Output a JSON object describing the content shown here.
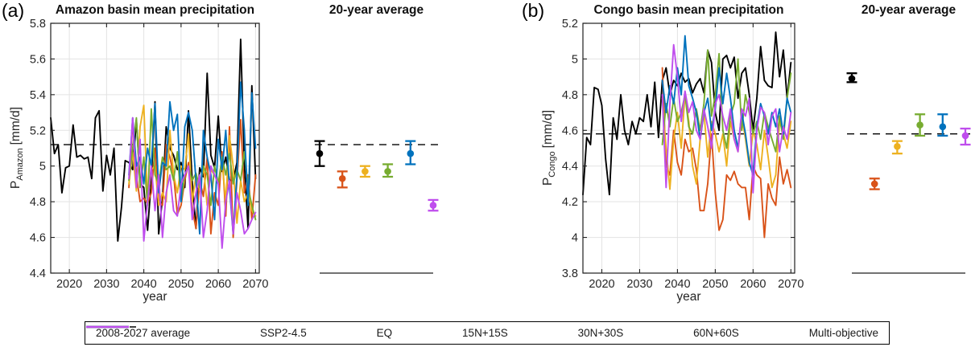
{
  "colors": {
    "black": "#000000",
    "orange": "#D95319",
    "yellow": "#EDB120",
    "green": "#77AC30",
    "blue": "#0072BD",
    "magenta": "#BF4DED",
    "grid": "#e3e3e3",
    "axis": "#1f1f1f"
  },
  "panels": [
    {
      "label": "(a)",
      "title": "Amazon basin mean precipitation",
      "avg_title": "20-year average",
      "xlabel": "year",
      "ylabel": {
        "prefix": "P",
        "sub": "Amazon",
        "unit": "[mm/d]"
      }
    },
    {
      "label": "(b)",
      "title": "Congo basin mean precipitation",
      "avg_title": "20-year average",
      "xlabel": "year",
      "ylabel": {
        "prefix": "P",
        "sub": "Congo",
        "unit": "[mm/d]"
      }
    }
  ],
  "legend": {
    "items": [
      {
        "label": "2008-2027 average",
        "color": "#000000",
        "style": "dashed"
      },
      {
        "label": "SSP2-4.5",
        "color": "#000000",
        "style": "solid"
      },
      {
        "label": "EQ",
        "color": "#D95319",
        "style": "solid"
      },
      {
        "label": "15N+15S",
        "color": "#EDB120",
        "style": "solid"
      },
      {
        "label": "30N+30S",
        "color": "#77AC30",
        "style": "solid"
      },
      {
        "label": "60N+60S",
        "color": "#0072BD",
        "style": "solid"
      },
      {
        "label": "Multi-objective",
        "color": "#BF4DED",
        "style": "solid"
      }
    ]
  },
  "chart_data": [
    {
      "type": "line",
      "title": "Amazon basin mean precipitation",
      "xlabel": "year",
      "ylabel": "P_Amazon [mm/d]",
      "xlim": [
        2015,
        2071
      ],
      "ylim": [
        4.4,
        5.8
      ],
      "xticks": [
        2020,
        2030,
        2040,
        2050,
        2060,
        2070
      ],
      "yticks": [
        4.4,
        4.6,
        4.8,
        5,
        5.2,
        5.4,
        5.6,
        5.8
      ],
      "grid": true,
      "legend_position": "bottom",
      "dashed_line": {
        "label": "2008-2027 average",
        "value": 5.12
      },
      "series": [
        {
          "name": "SSP2-4.5",
          "color": "#000000",
          "x_start": 2015,
          "values": [
            5.27,
            5.07,
            5.12,
            4.85,
            4.99,
            5.0,
            5.23,
            5.05,
            5.06,
            5.04,
            5.05,
            4.93,
            5.27,
            5.31,
            4.86,
            5.06,
            4.95,
            5.1,
            4.58,
            4.77,
            5.03,
            5.02,
            4.98,
            5.26,
            4.9,
            4.88,
            4.64,
            4.92,
            5.36,
            4.62,
            4.82,
            5.22,
            5.1,
            5.06,
            4.98,
            5.02,
            4.88,
            5.31,
            4.91,
            4.65,
            4.99,
            4.94,
            5.52,
            5.06,
            4.99,
            5.28,
            4.97,
            5.05,
            4.92,
            4.92,
            5.02,
            5.71,
            5.01,
            4.65,
            5.45,
            4.93
          ]
        },
        {
          "name": "EQ",
          "color": "#D95319",
          "x_start": 2036,
          "values": [
            4.88,
            5.25,
            4.95,
            4.8,
            4.82,
            4.79,
            4.85,
            5.1,
            4.8,
            4.78,
            5.12,
            5.05,
            4.95,
            4.73,
            4.78,
            4.92,
            5.02,
            4.76,
            4.65,
            4.92,
            4.83,
            5.05,
            4.62,
            4.85,
            4.78,
            5.08,
            4.72,
            5.22,
            4.6,
            4.92,
            5.26,
            4.85,
            4.95,
            4.7,
            4.95
          ]
        },
        {
          "name": "15N+15S",
          "color": "#EDB120",
          "x_start": 2036,
          "values": [
            4.9,
            5.08,
            4.86,
            5.22,
            5.34,
            4.8,
            4.98,
            5.0,
            4.78,
            4.85,
            4.8,
            5.2,
            4.95,
            4.85,
            5.0,
            4.98,
            5.18,
            4.8,
            4.95,
            4.86,
            5.0,
            4.78,
            4.98,
            4.95,
            4.9,
            5.02,
            4.8,
            5.17,
            5.0,
            4.68,
            4.92,
            4.8,
            4.85,
            4.75,
            4.72
          ]
        },
        {
          "name": "30N+30S",
          "color": "#77AC30",
          "x_start": 2036,
          "values": [
            4.92,
            5.1,
            5.27,
            4.88,
            5.05,
            4.78,
            5.32,
            4.95,
            4.9,
            5.05,
            4.98,
            5.0,
            4.92,
            5.08,
            4.8,
            4.95,
            5.0,
            4.92,
            4.96,
            4.88,
            5.0,
            4.95,
            4.78,
            5.0,
            4.9,
            5.05,
            4.95,
            5.07,
            4.9,
            4.98,
            4.92,
            5.08,
            4.88,
            4.78,
            4.7
          ]
        },
        {
          "name": "60N+60S",
          "color": "#0072BD",
          "x_start": 2036,
          "values": [
            4.95,
            5.27,
            5.0,
            5.05,
            4.9,
            5.1,
            5.0,
            5.35,
            4.85,
            5.02,
            5.0,
            5.36,
            5.2,
            5.29,
            4.8,
            5.22,
            5.3,
            5.2,
            4.92,
            4.62,
            5.2,
            5.05,
            4.95,
            4.7,
            5.15,
            4.98,
            5.2,
            4.88,
            4.62,
            4.95,
            5.47,
            5.2,
            4.78,
            5.41,
            5.1
          ]
        },
        {
          "name": "Multi-objective",
          "color": "#BF4DED",
          "x_start": 2036,
          "values": [
            4.93,
            5.27,
            4.88,
            5.15,
            4.58,
            4.8,
            5.0,
            4.75,
            4.95,
            4.6,
            4.85,
            4.95,
            4.75,
            4.72,
            4.9,
            4.95,
            5.0,
            4.7,
            4.85,
            4.95,
            4.6,
            4.75,
            5.0,
            4.95,
            4.9,
            4.54,
            4.8,
            4.92,
            4.62,
            4.85,
            4.75,
            4.62,
            4.65,
            4.7,
            4.74
          ]
        }
      ],
      "errorbar": {
        "title": "20-year average",
        "points": [
          {
            "name": "SSP2-4.5",
            "color": "#000000",
            "y": 5.07,
            "lo": 5.0,
            "hi": 5.14
          },
          {
            "name": "EQ",
            "color": "#D95319",
            "y": 4.93,
            "lo": 4.88,
            "hi": 4.97
          },
          {
            "name": "15N+15S",
            "color": "#EDB120",
            "y": 4.97,
            "lo": 4.94,
            "hi": 5.0
          },
          {
            "name": "30N+30S",
            "color": "#77AC30",
            "y": 4.97,
            "lo": 4.94,
            "hi": 5.01
          },
          {
            "name": "60N+60S",
            "color": "#0072BD",
            "y": 5.07,
            "lo": 5.01,
            "hi": 5.14
          },
          {
            "name": "Multi-objective",
            "color": "#BF4DED",
            "y": 4.78,
            "lo": 4.75,
            "hi": 4.81
          }
        ]
      }
    },
    {
      "type": "line",
      "title": "Congo basin mean precipitation",
      "xlabel": "year",
      "ylabel": "P_Congo [mm/d]",
      "xlim": [
        2015,
        2071
      ],
      "ylim": [
        3.8,
        5.2
      ],
      "xticks": [
        2020,
        2030,
        2040,
        2050,
        2060,
        2070
      ],
      "yticks": [
        3.8,
        4,
        4.2,
        4.4,
        4.6,
        4.8,
        5,
        5.2
      ],
      "grid": true,
      "legend_position": "bottom",
      "dashed_line": {
        "label": "2008-2027 average",
        "value": 4.58
      },
      "series": [
        {
          "name": "SSP2-4.5",
          "color": "#000000",
          "x_start": 2015,
          "values": [
            4.24,
            4.56,
            4.52,
            4.84,
            4.83,
            4.74,
            4.44,
            4.24,
            4.67,
            4.55,
            4.8,
            4.6,
            4.52,
            4.65,
            4.58,
            4.67,
            4.65,
            4.8,
            4.62,
            4.87,
            4.56,
            4.88,
            4.95,
            4.8,
            4.88,
            4.85,
            4.92,
            4.87,
            4.89,
            4.81,
            4.86,
            4.89,
            4.81,
            5.05,
            4.98,
            4.7,
            4.6,
            5.0,
            5.02,
            4.95,
            5.01,
            4.78,
            4.92,
            4.95,
            4.8,
            4.6,
            4.78,
            5.07,
            4.88,
            4.85,
            4.84,
            5.15,
            4.9,
            5.05,
            4.78,
            4.98
          ]
        },
        {
          "name": "EQ",
          "color": "#D95319",
          "x_start": 2036,
          "values": [
            4.95,
            4.4,
            4.35,
            4.6,
            4.42,
            4.35,
            4.55,
            4.48,
            4.5,
            4.38,
            4.15,
            4.15,
            4.3,
            4.58,
            4.25,
            4.04,
            4.1,
            4.35,
            4.32,
            4.37,
            4.3,
            4.28,
            4.28,
            4.1,
            4.4,
            4.35,
            4.33,
            4.0,
            4.3,
            4.22,
            4.18,
            4.45,
            4.3,
            4.38,
            4.28
          ]
        },
        {
          "name": "15N+15S",
          "color": "#EDB120",
          "x_start": 2036,
          "values": [
            4.78,
            4.5,
            4.27,
            4.55,
            4.7,
            4.5,
            4.8,
            4.65,
            4.4,
            4.3,
            4.55,
            4.7,
            4.45,
            4.65,
            4.58,
            4.48,
            4.58,
            4.4,
            4.65,
            4.55,
            4.48,
            4.68,
            4.55,
            4.4,
            4.6,
            4.52,
            4.38,
            4.6,
            4.45,
            4.28,
            4.35,
            4.65,
            4.58,
            4.5,
            4.65
          ]
        },
        {
          "name": "30N+30S",
          "color": "#77AC30",
          "x_start": 2036,
          "values": [
            4.52,
            4.75,
            4.62,
            4.78,
            4.65,
            4.7,
            4.8,
            4.62,
            4.58,
            4.72,
            4.6,
            4.75,
            5.05,
            4.68,
            4.8,
            5.03,
            4.6,
            4.5,
            4.68,
            4.75,
            5.0,
            4.6,
            4.8,
            4.7,
            4.58,
            4.65,
            4.55,
            4.7,
            4.62,
            4.55,
            4.48,
            4.68,
            4.55,
            4.78,
            4.92
          ]
        },
        {
          "name": "60N+60S",
          "color": "#0072BD",
          "x_start": 2036,
          "values": [
            4.88,
            4.7,
            4.85,
            4.75,
            4.95,
            4.8,
            5.13,
            4.85,
            4.78,
            4.7,
            4.55,
            4.7,
            4.78,
            4.6,
            4.72,
            4.95,
            4.75,
            4.92,
            4.78,
            4.6,
            4.5,
            4.7,
            4.58,
            4.42,
            4.35,
            4.62,
            4.75,
            4.68,
            4.58,
            4.7,
            4.62,
            4.72,
            4.58,
            4.78,
            4.7
          ]
        },
        {
          "name": "Multi-objective",
          "color": "#BF4DED",
          "x_start": 2036,
          "values": [
            4.8,
            4.28,
            4.75,
            5.08,
            4.9,
            4.65,
            4.82,
            4.7,
            4.76,
            4.6,
            4.55,
            4.72,
            4.62,
            4.5,
            4.75,
            4.8,
            4.68,
            4.6,
            4.72,
            4.55,
            4.48,
            4.72,
            4.68,
            4.78,
            4.25,
            4.6,
            4.73,
            4.7,
            4.52,
            4.68,
            4.72,
            4.48,
            4.62,
            4.55,
            4.7
          ]
        }
      ],
      "errorbar": {
        "title": "20-year average",
        "points": [
          {
            "name": "SSP2-4.5",
            "color": "#000000",
            "y": 4.89,
            "lo": 4.87,
            "hi": 4.92
          },
          {
            "name": "EQ",
            "color": "#D95319",
            "y": 4.3,
            "lo": 4.27,
            "hi": 4.33
          },
          {
            "name": "15N+15S",
            "color": "#EDB120",
            "y": 4.51,
            "lo": 4.47,
            "hi": 4.54
          },
          {
            "name": "30N+30S",
            "color": "#77AC30",
            "y": 4.63,
            "lo": 4.57,
            "hi": 4.69
          },
          {
            "name": "60N+60S",
            "color": "#0072BD",
            "y": 4.62,
            "lo": 4.57,
            "hi": 4.69
          },
          {
            "name": "Multi-objective",
            "color": "#BF4DED",
            "y": 4.57,
            "lo": 4.52,
            "hi": 4.61
          }
        ]
      }
    }
  ]
}
